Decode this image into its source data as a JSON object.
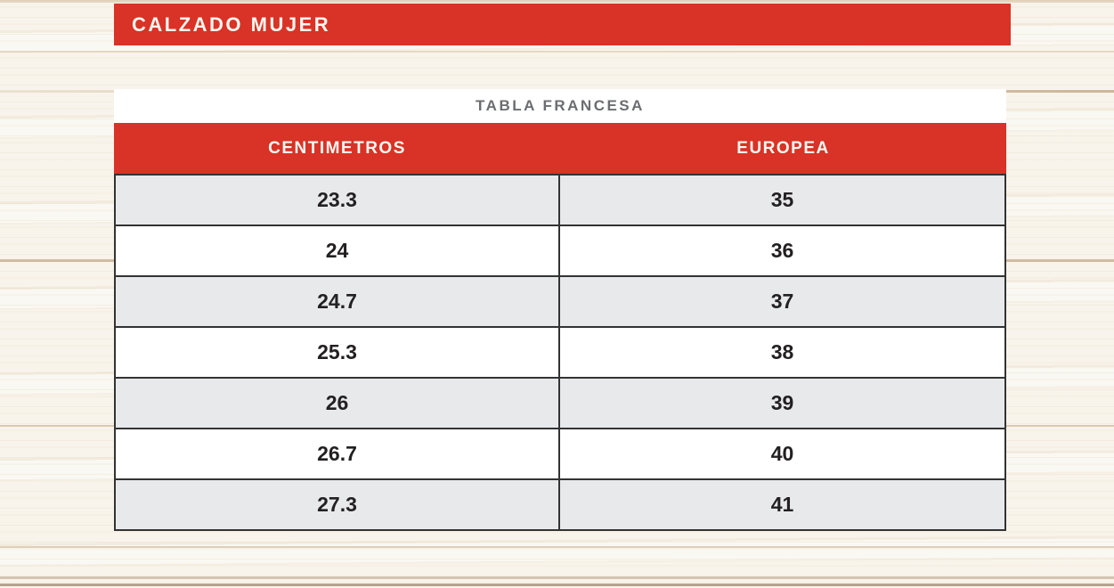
{
  "page": {
    "title_bar": {
      "label": "CALZADO MUJER"
    },
    "table": {
      "title": "TABLA FRANCESA",
      "columns": [
        "CENTIMETROS",
        "EUROPEA"
      ],
      "rows": [
        [
          "23.3",
          "35"
        ],
        [
          "24",
          "36"
        ],
        [
          "24.7",
          "37"
        ],
        [
          "25.3",
          "38"
        ],
        [
          "26",
          "39"
        ],
        [
          "26.7",
          "40"
        ],
        [
          "27.3",
          "41"
        ]
      ]
    }
  },
  "colors": {
    "accent_red": "#d93226",
    "row_alt_gray": "#e8e9eb",
    "row_white": "#ffffff",
    "table_title_gray": "#6b6d70",
    "cell_text": "#232021",
    "border_dark": "#333333",
    "background_wood": "#f8f4ec"
  },
  "chart_data": {
    "type": "table",
    "section": "CALZADO MUJER",
    "title": "TABLA FRANCESA",
    "columns": [
      "CENTIMETROS",
      "EUROPEA"
    ],
    "rows": [
      [
        23.3,
        35
      ],
      [
        24,
        36
      ],
      [
        24.7,
        37
      ],
      [
        25.3,
        38
      ],
      [
        26,
        39
      ],
      [
        26.7,
        40
      ],
      [
        27.3,
        41
      ]
    ],
    "layout": "two-column conversion table, alternating gray/white rows, red header band"
  }
}
